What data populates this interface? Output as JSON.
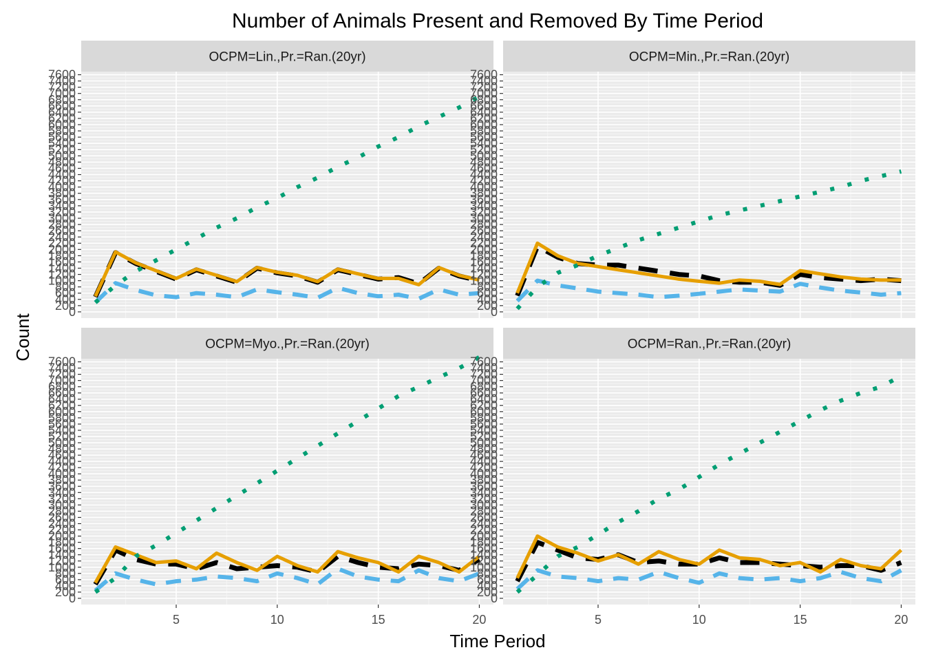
{
  "chart_data": {
    "type": "line",
    "title": "Number of Animals Present and Removed By Time Period",
    "xlabel": "Time Period",
    "ylabel": "Count",
    "x_ticks": [
      5,
      10,
      15,
      20
    ],
    "xlim": [
      0.3,
      20.7
    ],
    "y_ticks": [
      0,
      200,
      400,
      600,
      800,
      1000,
      1200,
      1400,
      1600,
      1800,
      2000,
      2200,
      2400,
      2600,
      2800,
      3000,
      3200,
      3400,
      3600,
      3800,
      4000,
      4200,
      4400,
      4600,
      4800,
      5000,
      5200,
      5400,
      5600,
      5800,
      6000,
      6200,
      6400,
      6600,
      6800,
      7000,
      7200,
      7400,
      7600
    ],
    "ylim": [
      -200,
      7700
    ],
    "grid": true,
    "legend": "none",
    "series_styles": [
      {
        "color": "#000000",
        "dash": "dashed-long",
        "width": 7
      },
      {
        "color": "#E69F00",
        "dash": "solid",
        "width": 5
      },
      {
        "color": "#56B4E9",
        "dash": "dashed",
        "width": 6
      },
      {
        "color": "#009E73",
        "dash": "dotted",
        "width": 6
      }
    ],
    "panels": [
      {
        "strip": "OCPM=Lin.,Pr.=Ran.(20yr)",
        "x": [
          1,
          2,
          3,
          4,
          5,
          6,
          7,
          8,
          9,
          10,
          11,
          12,
          13,
          14,
          15,
          16,
          17,
          18,
          19,
          20
        ],
        "series": [
          {
            "values": [
              480,
              1900,
              1550,
              1300,
              1050,
              1350,
              1150,
              950,
              1400,
              1250,
              1150,
              950,
              1350,
              1200,
              1050,
              1100,
              900,
              1400,
              1150,
              1000
            ]
          },
          {
            "values": [
              500,
              1920,
              1570,
              1320,
              1070,
              1370,
              1170,
              970,
              1420,
              1270,
              1170,
              970,
              1370,
              1220,
              1070,
              1070,
              870,
              1420,
              1170,
              1020
            ]
          },
          {
            "values": [
              300,
              920,
              700,
              530,
              470,
              600,
              550,
              470,
              720,
              630,
              550,
              450,
              770,
              600,
              500,
              550,
              420,
              720,
              550,
              600
            ]
          },
          {
            "values": [
              300,
              850,
              1300,
              1650,
              2000,
              2350,
              2700,
              3000,
              3350,
              3650,
              4000,
              4300,
              4650,
              4950,
              5300,
              5600,
              5950,
              6250,
              6550,
              6900
            ]
          }
        ]
      },
      {
        "strip": "OCPM=Min.,Pr.=Ran.(20yr)",
        "x": [
          1,
          2,
          3,
          4,
          5,
          6,
          7,
          8,
          9,
          10,
          11,
          12,
          13,
          14,
          15,
          16,
          17,
          18,
          19,
          20
        ],
        "series": [
          {
            "values": [
              520,
              2100,
              1750,
              1550,
              1500,
              1500,
              1400,
              1300,
              1200,
              1150,
              1000,
              950,
              950,
              850,
              1200,
              1100,
              1050,
              1000,
              1050,
              1000
            ]
          },
          {
            "values": [
              600,
              2200,
              1800,
              1550,
              1450,
              1350,
              1250,
              1150,
              1050,
              980,
              920,
              1020,
              980,
              880,
              1320,
              1220,
              1120,
              1050,
              1020,
              1020
            ]
          },
          {
            "values": [
              350,
              1000,
              850,
              750,
              650,
              600,
              550,
              470,
              520,
              580,
              650,
              720,
              680,
              650,
              900,
              780,
              680,
              620,
              550,
              600
            ]
          },
          {
            "values": [
              100,
              800,
              1250,
              1500,
              1800,
              2050,
              2300,
              2500,
              2700,
              2900,
              3100,
              3250,
              3400,
              3550,
              3700,
              3850,
              4000,
              4200,
              4350,
              4500
            ]
          }
        ]
      },
      {
        "strip": "OCPM=Myo.,Pr.=Ran.(20yr)",
        "x": [
          1,
          2,
          3,
          4,
          5,
          6,
          7,
          8,
          9,
          10,
          11,
          12,
          13,
          14,
          15,
          16,
          17,
          18,
          19,
          20
        ],
        "series": [
          {
            "values": [
              450,
              1550,
              1250,
              1100,
              1100,
              950,
              1150,
              950,
              1000,
              1050,
              1000,
              850,
              1350,
              1150,
              1000,
              950,
              1100,
              1050,
              900,
              1250
            ]
          },
          {
            "values": [
              500,
              1650,
              1400,
              1150,
              1200,
              950,
              1450,
              1150,
              900,
              1350,
              1050,
              850,
              1500,
              1300,
              1150,
              850,
              1350,
              1150,
              850,
              1350
            ]
          },
          {
            "values": [
              250,
              800,
              600,
              450,
              550,
              600,
              700,
              650,
              550,
              800,
              650,
              450,
              950,
              700,
              600,
              550,
              900,
              650,
              550,
              800
            ]
          },
          {
            "values": [
              200,
              650,
              1350,
              1700,
              2100,
              2500,
              2900,
              3300,
              3700,
              4100,
              4500,
              4900,
              5300,
              5700,
              6100,
              6500,
              6800,
              7100,
              7400,
              7750
            ]
          }
        ]
      },
      {
        "strip": "OCPM=Ran.,Pr.=Ran.(20yr)",
        "x": [
          1,
          2,
          3,
          4,
          5,
          6,
          7,
          8,
          9,
          10,
          11,
          12,
          13,
          14,
          15,
          16,
          17,
          18,
          19,
          20
        ],
        "series": [
          {
            "values": [
              550,
              1800,
              1550,
              1300,
              1250,
              1400,
              1150,
              1200,
              1100,
              1100,
              1300,
              1150,
              1150,
              1100,
              1050,
              1000,
              1050,
              1050,
              900,
              1150
            ]
          },
          {
            "values": [
              650,
              2000,
              1650,
              1450,
              1200,
              1400,
              1100,
              1500,
              1250,
              1100,
              1550,
              1300,
              1250,
              1050,
              1150,
              850,
              1250,
              1050,
              950,
              1550
            ]
          },
          {
            "values": [
              300,
              900,
              700,
              650,
              550,
              650,
              600,
              850,
              650,
              500,
              800,
              650,
              600,
              650,
              550,
              650,
              850,
              650,
              550,
              900
            ]
          },
          {
            "values": [
              200,
              750,
              1350,
              1650,
              2050,
              2450,
              2800,
              3200,
              3500,
              3900,
              4300,
              4650,
              5000,
              5350,
              5700,
              6050,
              6350,
              6600,
              6800,
              7150
            ]
          }
        ]
      }
    ]
  }
}
